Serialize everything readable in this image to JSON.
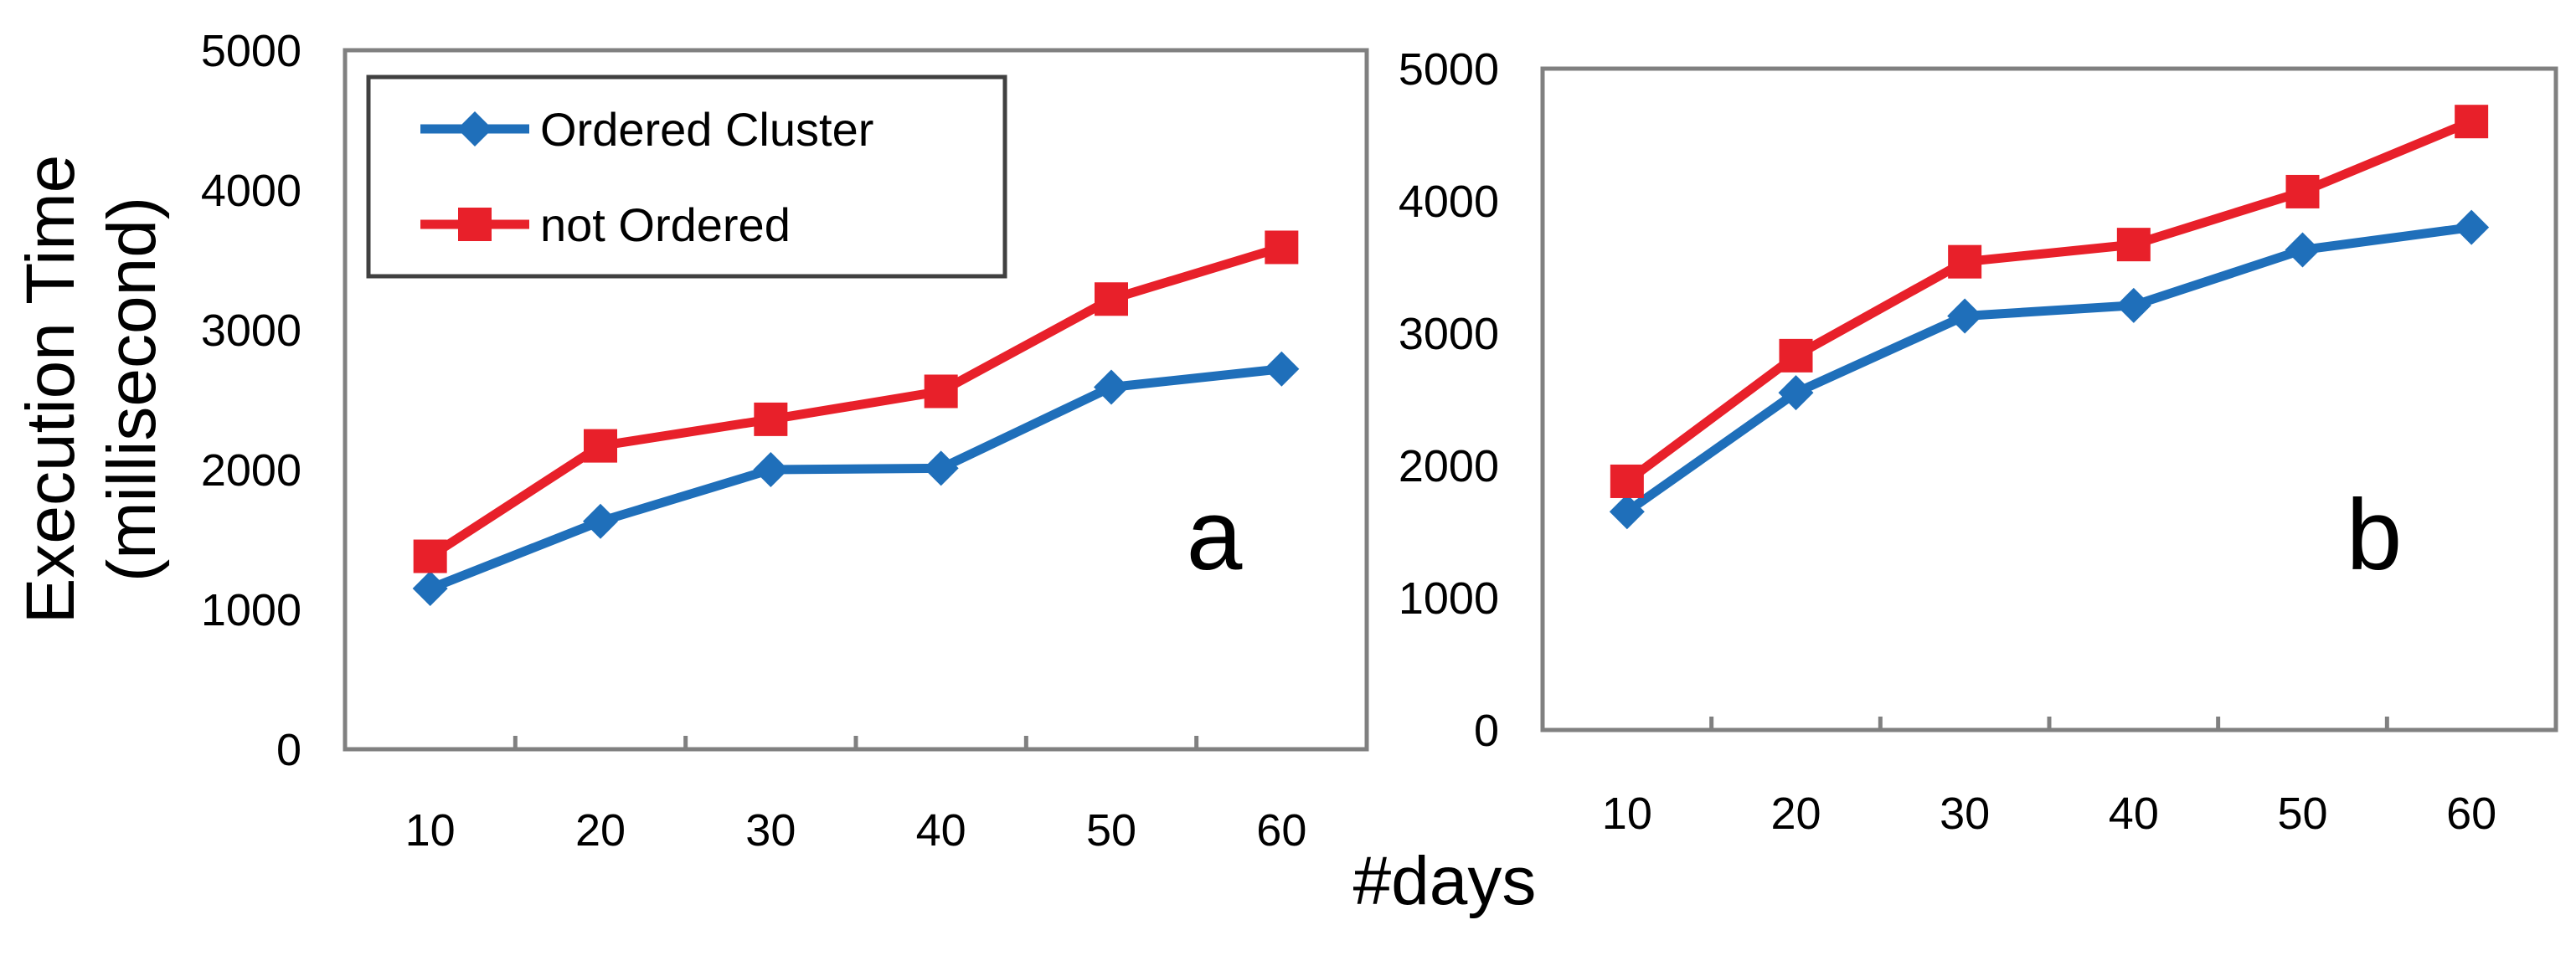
{
  "figure": {
    "ylabel_line1": "Execution Time",
    "ylabel_line2": "(millisecond)",
    "xlabel": "#days"
  },
  "colors": {
    "ordered": "#1f6fba",
    "not_ordered": "#e8202a",
    "axis": "#808080",
    "legend_border": "#404040"
  },
  "chart_data": [
    {
      "type": "line",
      "panel_label": "a",
      "categories": [
        "10",
        "20",
        "30",
        "40",
        "50",
        "60"
      ],
      "ylim": [
        0,
        5000
      ],
      "yticks": [
        "0",
        "1000",
        "2000",
        "3000",
        "4000",
        "5000"
      ],
      "legend": {
        "placement": "top-left",
        "entries": [
          "Ordered Cluster",
          "not Ordered"
        ]
      },
      "series": [
        {
          "name": "Ordered Cluster",
          "marker": "diamond",
          "values": [
            1150,
            1630,
            2000,
            2010,
            2590,
            2720
          ]
        },
        {
          "name": "not Ordered",
          "marker": "square",
          "values": [
            1380,
            2170,
            2360,
            2560,
            3220,
            3590
          ]
        }
      ]
    },
    {
      "type": "line",
      "panel_label": "b",
      "categories": [
        "10",
        "20",
        "30",
        "40",
        "50",
        "60"
      ],
      "ylim": [
        0,
        5000
      ],
      "yticks": [
        "0",
        "1000",
        "2000",
        "3000",
        "4000",
        "5000"
      ],
      "series": [
        {
          "name": "Ordered Cluster",
          "marker": "diamond",
          "values": [
            1650,
            2550,
            3130,
            3210,
            3630,
            3800
          ]
        },
        {
          "name": "not Ordered",
          "marker": "square",
          "values": [
            1880,
            2830,
            3540,
            3670,
            4070,
            4600
          ]
        }
      ]
    }
  ]
}
